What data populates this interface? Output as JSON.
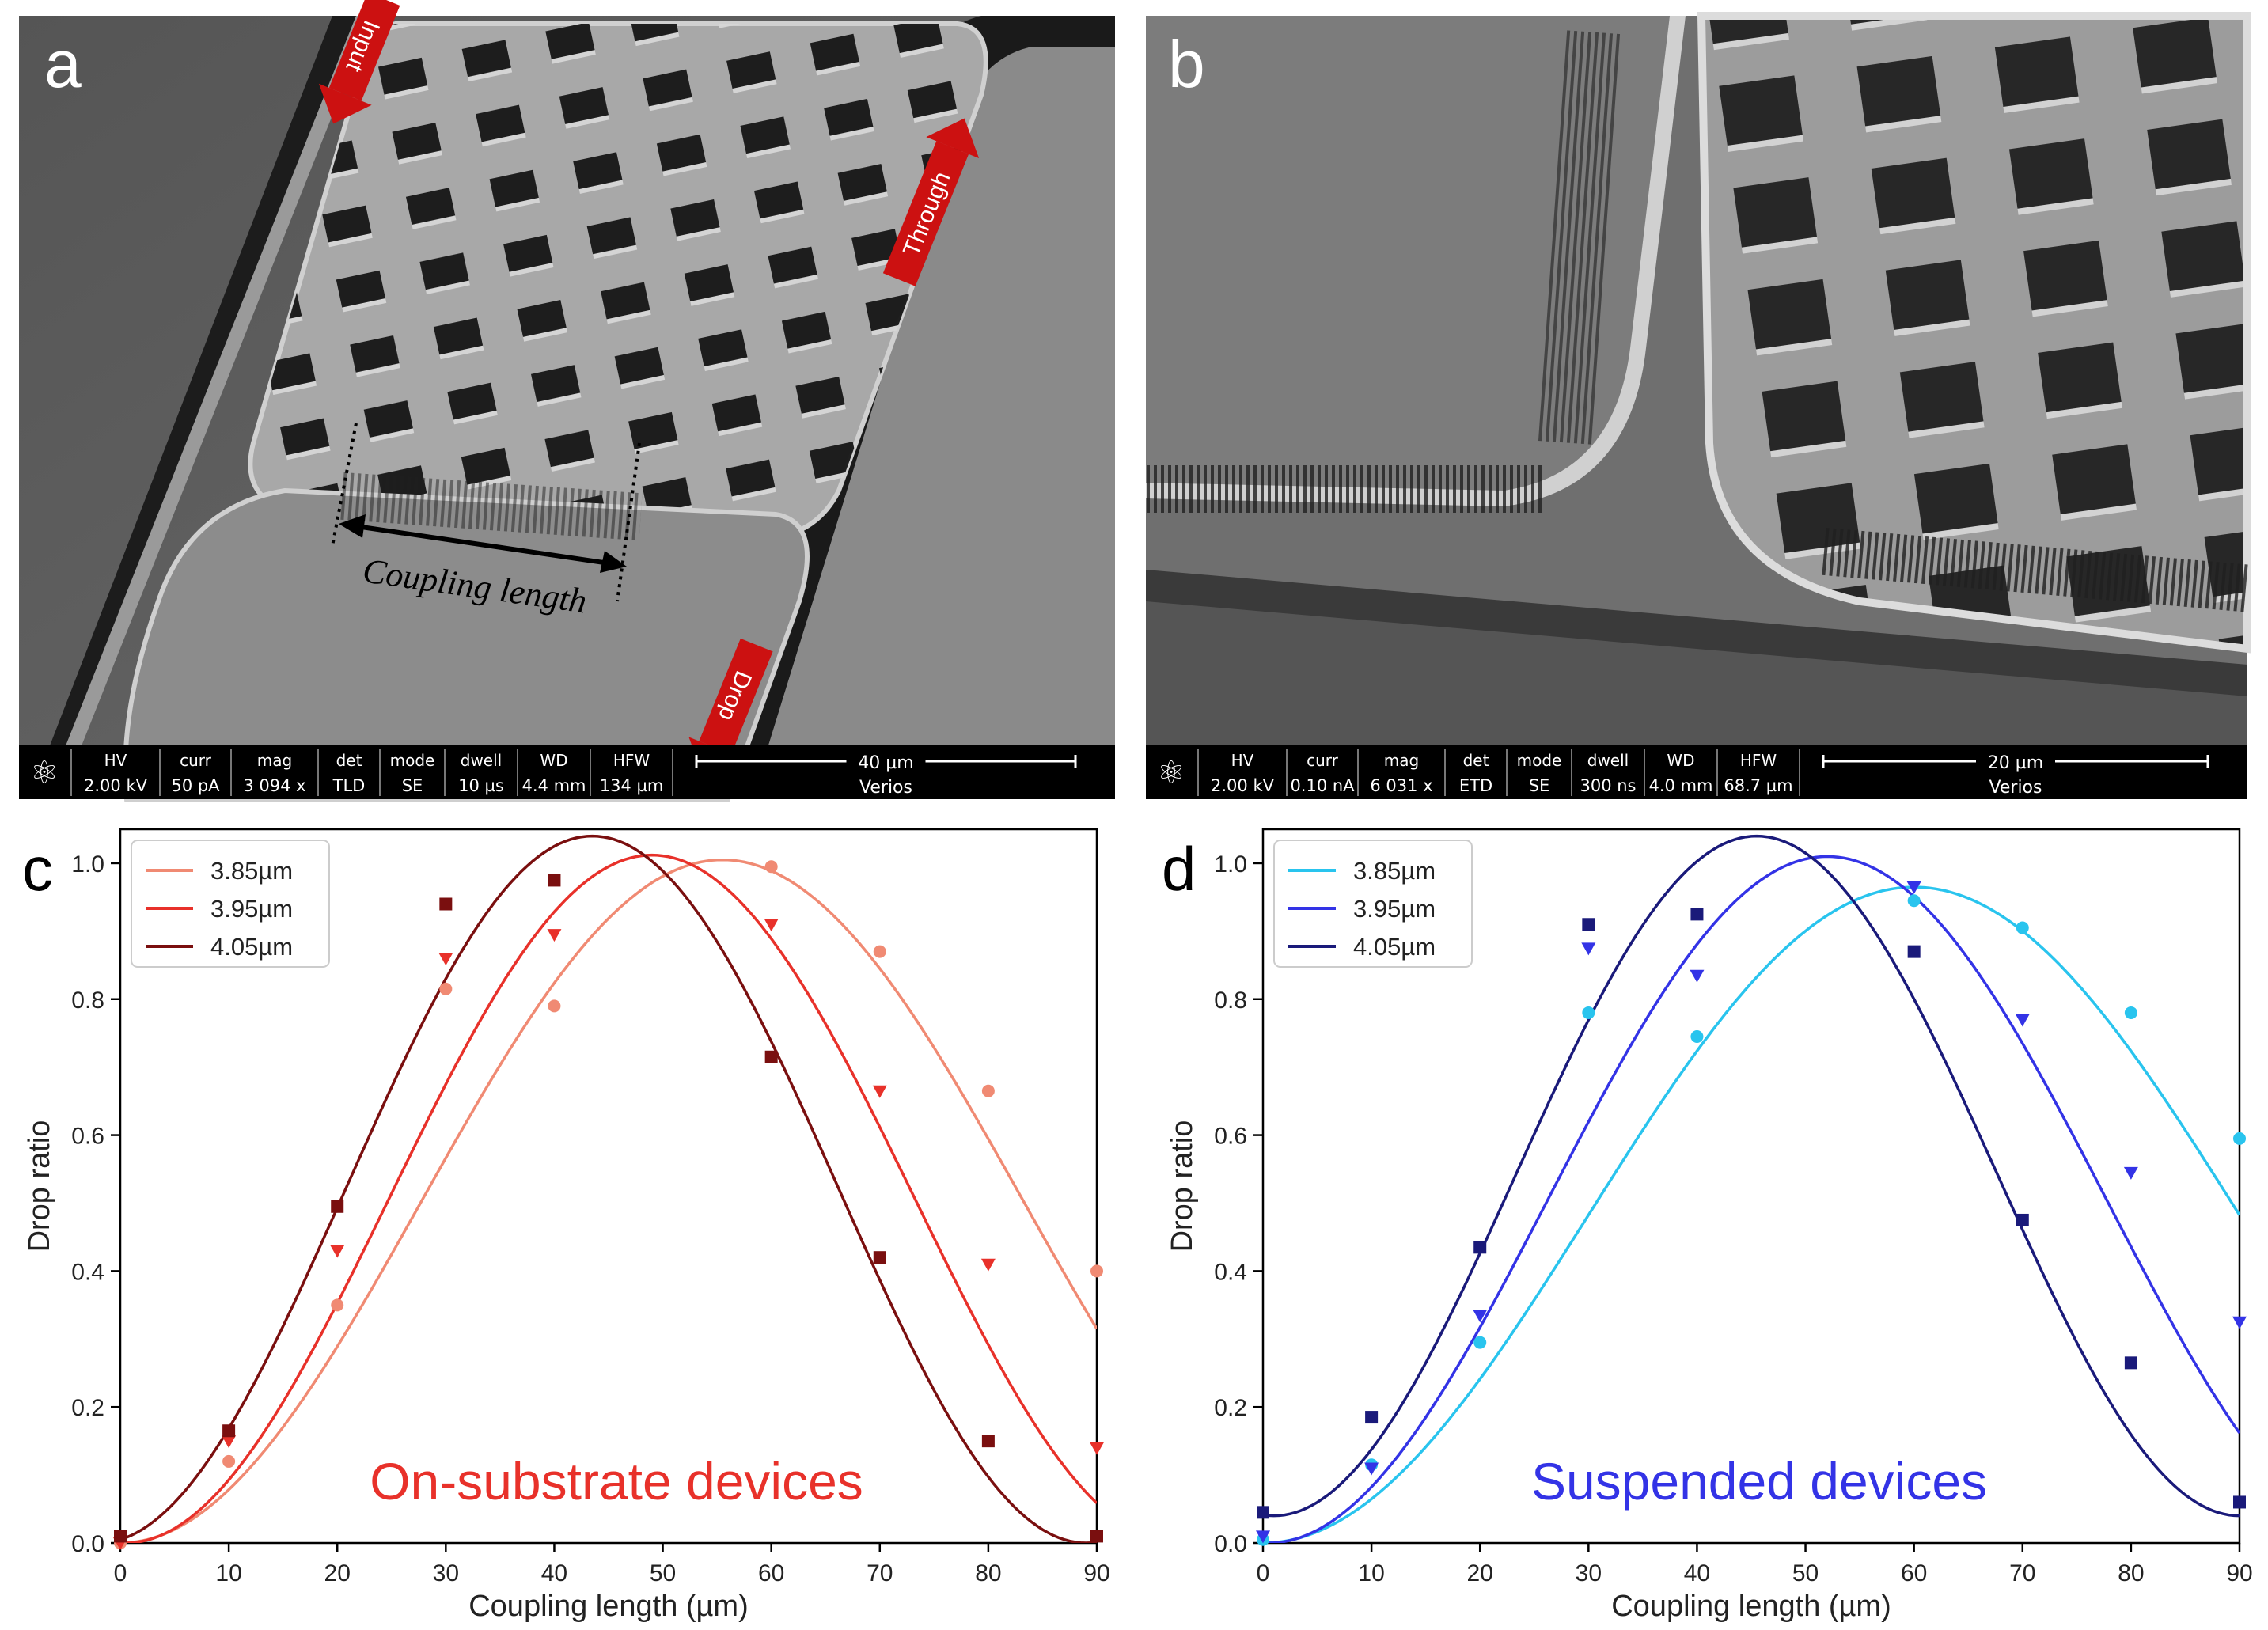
{
  "panel_a": {
    "letter": "a",
    "arrows": [
      "Input",
      "Through",
      "Drop"
    ],
    "coupling_label": "Coupling length",
    "databar": {
      "headers": [
        "HV",
        "curr",
        "mag",
        "det",
        "mode",
        "dwell",
        "WD",
        "HFW"
      ],
      "values": [
        "2.00 kV",
        "50 pA",
        "3 094 x",
        "TLD",
        "SE",
        "10 µs",
        "4.4 mm",
        "134 µm"
      ],
      "scale": "40 µm",
      "brand": "Verios"
    }
  },
  "panel_b": {
    "letter": "b",
    "databar": {
      "headers": [
        "HV",
        "curr",
        "mag",
        "det",
        "mode",
        "dwell",
        "WD",
        "HFW"
      ],
      "values": [
        "2.00 kV",
        "0.10 nA",
        "6 031 x",
        "ETD",
        "SE",
        "300 ns",
        "4.0 mm",
        "68.7 µm"
      ],
      "scale": "20 µm",
      "brand": "Verios"
    }
  },
  "chart_data": [
    {
      "panel": "c",
      "type": "scatter",
      "title": "",
      "annotation": "On-substrate devices",
      "annotation_color": "#e8312a",
      "xlabel": "Coupling length (µm)",
      "ylabel": "Drop ratio",
      "xlim": [
        0,
        90
      ],
      "ylim": [
        0,
        1.05
      ],
      "xticks": [
        0,
        10,
        20,
        30,
        40,
        50,
        60,
        70,
        80,
        90
      ],
      "yticks": [
        0.0,
        0.2,
        0.4,
        0.6,
        0.8,
        1.0
      ],
      "grid": false,
      "legend": "top-left",
      "x": [
        0,
        10,
        20,
        30,
        40,
        60,
        70,
        80,
        90
      ],
      "series": [
        {
          "name": "3.85µm",
          "color": "#f08a73",
          "marker": "circle",
          "points": [
            0.0,
            0.12,
            0.35,
            0.815,
            0.79,
            0.995,
            0.87,
            0.665,
            0.4
          ],
          "fit": {
            "amp": 1.005,
            "peak": 55.5,
            "half_period": 55.5,
            "offset": 0
          }
        },
        {
          "name": "3.95µm",
          "color": "#e8312a",
          "marker": "triangle-down",
          "points": [
            0.0,
            0.15,
            0.43,
            0.86,
            0.895,
            0.91,
            0.665,
            0.41,
            0.14
          ],
          "fit": {
            "amp": 1.012,
            "peak": 49.0,
            "half_period": 48.5,
            "offset": 0
          }
        },
        {
          "name": "4.05µm",
          "color": "#7a0f0f",
          "marker": "square",
          "points": [
            0.01,
            0.165,
            0.495,
            0.94,
            0.975,
            0.715,
            0.42,
            0.15,
            0.01
          ],
          "fit": {
            "amp": 1.04,
            "peak": 43.5,
            "half_period": 45.5,
            "offset": 0
          }
        }
      ]
    },
    {
      "panel": "d",
      "type": "scatter",
      "title": "",
      "annotation": "Suspended devices",
      "annotation_color": "#3333e6",
      "xlabel": "Coupling length (µm)",
      "ylabel": "Drop ratio",
      "xlim": [
        0,
        90
      ],
      "ylim": [
        0,
        1.05
      ],
      "xticks": [
        0,
        10,
        20,
        30,
        40,
        50,
        60,
        70,
        80,
        90
      ],
      "yticks": [
        0.0,
        0.2,
        0.4,
        0.6,
        0.8,
        1.0
      ],
      "grid": false,
      "legend": "top-left",
      "x": [
        0,
        10,
        20,
        30,
        40,
        60,
        70,
        80,
        90
      ],
      "series": [
        {
          "name": "3.85µm",
          "color": "#29c4ee",
          "marker": "circle",
          "points": [
            0.005,
            0.115,
            0.295,
            0.78,
            0.745,
            0.945,
            0.905,
            0.78,
            0.595
          ],
          "fit": {
            "amp": 0.965,
            "peak": 60.0,
            "half_period": 60.0,
            "offset": 0
          }
        },
        {
          "name": "3.95µm",
          "color": "#3333e6",
          "marker": "triangle-down",
          "points": [
            0.01,
            0.11,
            0.335,
            0.875,
            0.835,
            0.965,
            0.77,
            0.545,
            0.325
          ],
          "fit": {
            "amp": 1.01,
            "peak": 52.0,
            "half_period": 51.5,
            "offset": 0
          }
        },
        {
          "name": "4.05µm",
          "color": "#1a1a7a",
          "marker": "square",
          "points": [
            0.045,
            0.185,
            0.435,
            0.91,
            0.925,
            0.87,
            0.475,
            0.265,
            0.06
          ],
          "fit": {
            "amp": 1.04,
            "peak": 45.5,
            "half_period": 44.5,
            "offset": 0.04
          }
        }
      ]
    }
  ]
}
